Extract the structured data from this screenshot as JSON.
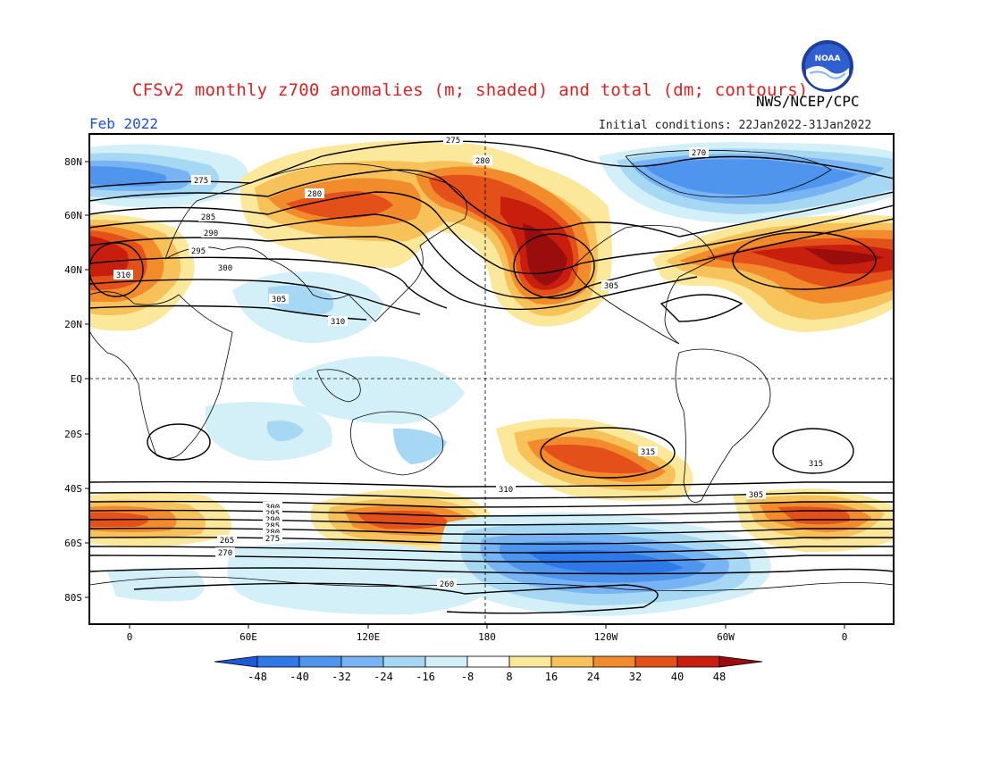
{
  "header": {
    "title": "CFSv2 monthly z700 anomalies (m; shaded) and total (dm; contours)",
    "agency": "NWS/NCEP/CPC",
    "month": "Feb 2022",
    "initial_conditions": "Initial conditions: 22Jan2022-31Jan2022",
    "logo_text": "NOAA"
  },
  "map": {
    "lat_labels": [
      "80N",
      "60N",
      "40N",
      "20N",
      "EQ",
      "20S",
      "40S",
      "60S",
      "80S"
    ],
    "lon_labels": [
      "0",
      "60E",
      "120E",
      "180",
      "120W",
      "60W",
      "0"
    ],
    "contour_labels": [
      "275",
      "280",
      "270",
      "275",
      "280",
      "285",
      "290",
      "295",
      "300",
      "305",
      "310",
      "310",
      "305",
      "300",
      "295",
      "290",
      "285",
      "280",
      "275",
      "270",
      "265",
      "260",
      "315",
      "305",
      "310",
      "315"
    ]
  },
  "colorbar": {
    "ticks": [
      "-48",
      "-40",
      "-32",
      "-24",
      "-16",
      "-8",
      "8",
      "16",
      "24",
      "32",
      "40",
      "48"
    ],
    "colors": [
      "#1c5bd6",
      "#2f78e8",
      "#4f95ee",
      "#78b4f4",
      "#a6d8f4",
      "#d3f0f8",
      "#ffffff",
      "#fbe89a",
      "#f7c25a",
      "#f18b2c",
      "#e4501a",
      "#c81e0e",
      "#9a0d0d"
    ]
  },
  "shading": {
    "positive_colors": [
      "#fbe89a",
      "#f7c25a",
      "#f18b2c",
      "#e4501a",
      "#c81e0e",
      "#9a0d0d"
    ],
    "negative_colors": [
      "#d3f0f8",
      "#a6d8f4",
      "#78b4f4",
      "#4f95ee",
      "#2f78e8",
      "#1c5bd6"
    ]
  }
}
